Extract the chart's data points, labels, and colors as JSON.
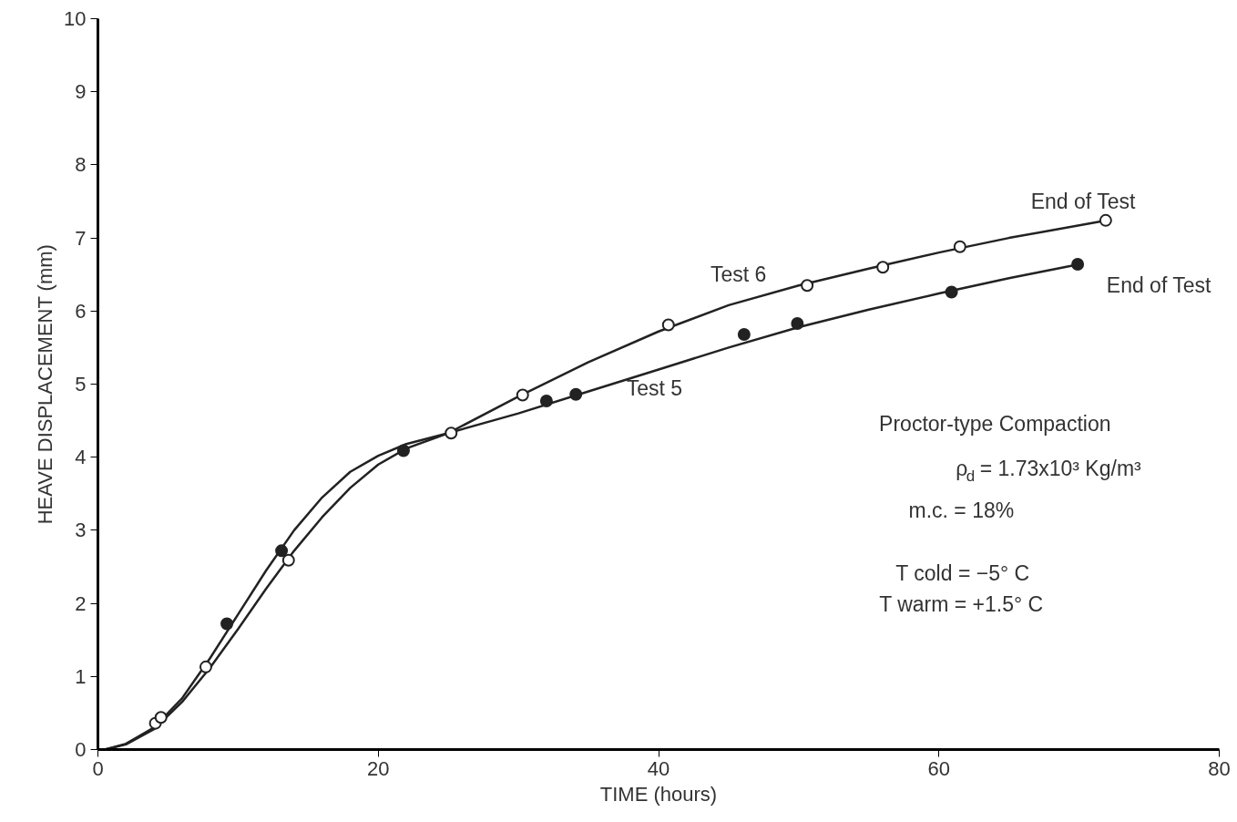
{
  "chart_data": {
    "type": "line",
    "xlabel": "TIME (hours)",
    "ylabel": "HEAVE DISPLACEMENT (mm)",
    "xlim": [
      0,
      80
    ],
    "ylim": [
      0,
      10
    ],
    "xticks": [
      0,
      20,
      40,
      60,
      80
    ],
    "yticks": [
      0,
      1,
      2,
      3,
      4,
      5,
      6,
      7,
      8,
      9,
      10
    ],
    "grid": false,
    "legend": false,
    "series": [
      {
        "name": "Test 5",
        "color": "#222222",
        "marker": "none",
        "x": [
          0.5,
          2,
          4,
          6,
          8,
          10,
          12,
          14,
          16,
          18,
          20,
          22,
          25,
          30,
          35,
          40,
          45,
          50,
          55,
          60,
          65,
          70
        ],
        "values": [
          0,
          0.08,
          0.3,
          0.7,
          1.25,
          1.85,
          2.45,
          3.0,
          3.45,
          3.8,
          4.02,
          4.18,
          4.33,
          4.6,
          4.9,
          5.2,
          5.5,
          5.78,
          6.02,
          6.24,
          6.45,
          6.64
        ]
      },
      {
        "name": "Test 6",
        "color": "#222222",
        "marker": "none",
        "x": [
          0.5,
          2,
          4,
          6,
          8,
          10,
          12,
          14,
          16,
          18,
          20,
          22,
          25,
          30,
          35,
          40,
          45,
          50,
          55,
          60,
          65,
          72
        ],
        "values": [
          0,
          0.07,
          0.28,
          0.65,
          1.12,
          1.65,
          2.2,
          2.72,
          3.18,
          3.58,
          3.9,
          4.12,
          4.33,
          4.83,
          5.3,
          5.72,
          6.08,
          6.35,
          6.58,
          6.8,
          7.0,
          7.24
        ]
      },
      {
        "type": "scatter",
        "color": "#222222",
        "marker": "circle",
        "x": [
          9.2,
          13.1,
          21.8,
          25.3,
          32.0,
          34.1,
          46.1,
          49.9,
          60.9,
          69.9
        ],
        "values": [
          1.72,
          2.72,
          4.09,
          null,
          4.77,
          4.86,
          5.68,
          5.83,
          6.26,
          6.64
        ]
      },
      {
        "type": "scatter",
        "color": "#ffffff",
        "marker": "circle",
        "x": [
          4.1,
          4.5,
          7.7,
          13.6,
          25.2,
          30.3,
          40.7,
          50.6,
          56.0,
          61.5,
          71.9
        ],
        "values": [
          0.36,
          0.44,
          1.13,
          2.59,
          4.33,
          4.85,
          5.81,
          6.35,
          6.6,
          6.88,
          7.24
        ]
      }
    ],
    "annotations": [
      "End of Test",
      "End of Test",
      "Proctor-type Compaction",
      "ρ$_{d}$ = 1.73x10³ Kg/m³",
      "m.c. = 18%",
      "T cold = −5° C",
      "T warm = +1.5° C"
    ]
  }
}
